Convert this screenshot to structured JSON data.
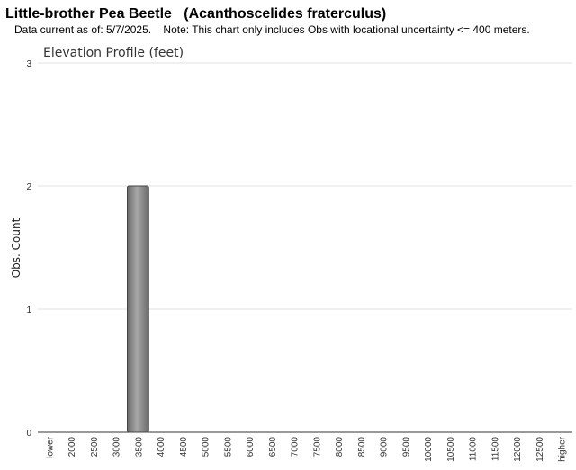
{
  "chart_data": {
    "type": "bar",
    "title": "Little-brother Pea Beetle   (Acanthoscelides fraterculus)",
    "subtitle": "Data current as of: 5/7/2025.    Note: This chart only includes Obs with locational uncertainty <= 400 meters.",
    "chart_title": "Elevation Profile (feet)",
    "y_label": "Obs. Count",
    "categories": [
      "lower",
      "2000",
      "2500",
      "3000",
      "3500",
      "4000",
      "4500",
      "5000",
      "5500",
      "6000",
      "6500",
      "7000",
      "7500",
      "8000",
      "8500",
      "9000",
      "9500",
      "10000",
      "10500",
      "11000",
      "11500",
      "12000",
      "12500",
      "higher"
    ],
    "values": [
      0,
      0,
      0,
      0,
      2,
      0,
      0,
      0,
      0,
      0,
      0,
      0,
      0,
      0,
      0,
      0,
      0,
      0,
      0,
      0,
      0,
      0,
      0,
      0
    ],
    "color": "#a8a8a8",
    "ylim": [
      0,
      3
    ],
    "yticks": [
      0,
      1,
      2,
      3
    ],
    "grid": true
  }
}
